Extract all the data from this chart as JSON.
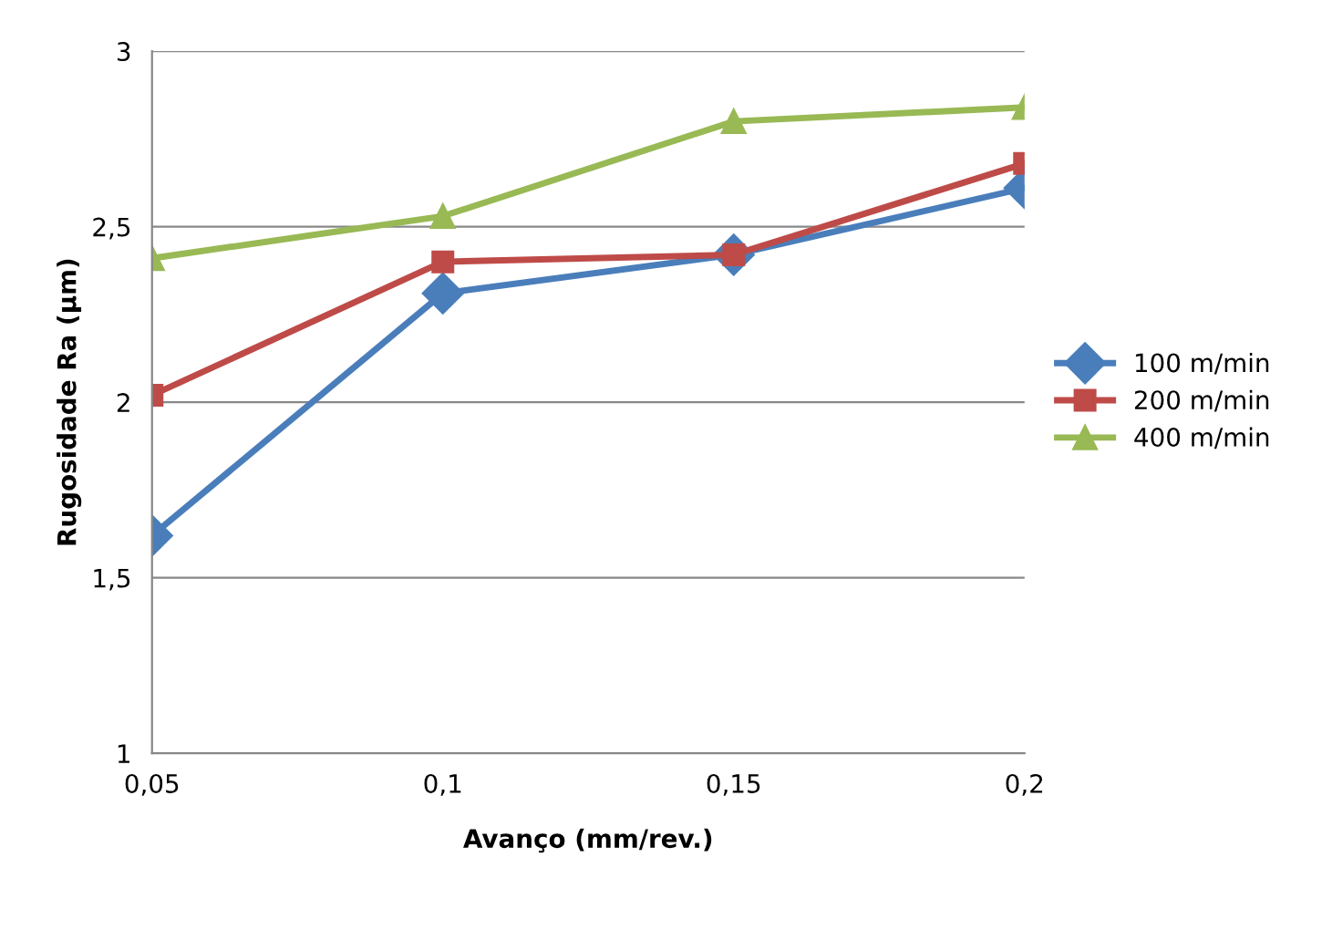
{
  "chart_data": {
    "type": "line",
    "xlabel": "Avanço (mm/rev.)",
    "ylabel": "Rugosidade Ra (µm)",
    "categories": [
      "0,05",
      "0,1",
      "0,15",
      "0,2"
    ],
    "ylim": [
      1,
      3
    ],
    "yticks": [
      {
        "value": 1,
        "label": "1"
      },
      {
        "value": 1.5,
        "label": "1,5"
      },
      {
        "value": 2,
        "label": "2"
      },
      {
        "value": 2.5,
        "label": "2,5"
      },
      {
        "value": 3,
        "label": "3"
      }
    ],
    "grid": "y",
    "legend": "right",
    "series": [
      {
        "name": "100 m/min",
        "color": "#4a7ebb",
        "marker": "diamond",
        "values": [
          1.62,
          2.31,
          2.42,
          2.61
        ]
      },
      {
        "name": "200 m/min",
        "color": "#be4b48",
        "marker": "square",
        "values": [
          2.02,
          2.4,
          2.42,
          2.68
        ]
      },
      {
        "name": "400 m/min",
        "color": "#98b954",
        "marker": "triangle",
        "values": [
          2.41,
          2.53,
          2.8,
          2.84
        ]
      }
    ]
  }
}
